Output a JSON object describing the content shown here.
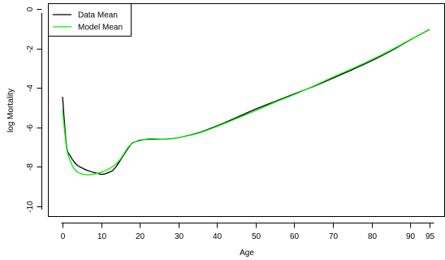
{
  "chart_data": {
    "type": "line",
    "title": "",
    "xlabel": "Age",
    "ylabel": "log Mortality",
    "xlim": [
      -3.8,
      98.8
    ],
    "ylim": [
      -10.5,
      0.3
    ],
    "x_ticks": [
      0,
      10,
      20,
      30,
      40,
      50,
      60,
      70,
      80,
      90,
      95
    ],
    "y_ticks": [
      0,
      -2,
      -4,
      -6,
      -8,
      -10
    ],
    "legend_position": "top-left",
    "grid": false,
    "series": [
      {
        "name": "Data Mean",
        "color": "#000000",
        "x": [
          0,
          1,
          2,
          3,
          4,
          5,
          6,
          7,
          8,
          9,
          10,
          11,
          12,
          13,
          14,
          15,
          16,
          17,
          18,
          19,
          20,
          22,
          24,
          26,
          28,
          30,
          35,
          40,
          45,
          50,
          55,
          60,
          65,
          70,
          75,
          80,
          85,
          90,
          95
        ],
        "y": [
          -4.45,
          -6.9,
          -7.45,
          -7.75,
          -7.95,
          -8.05,
          -8.15,
          -8.22,
          -8.28,
          -8.33,
          -8.38,
          -8.35,
          -8.28,
          -8.18,
          -7.95,
          -7.65,
          -7.35,
          -7.05,
          -6.8,
          -6.72,
          -6.65,
          -6.6,
          -6.6,
          -6.6,
          -6.57,
          -6.52,
          -6.28,
          -5.92,
          -5.5,
          -5.07,
          -4.68,
          -4.3,
          -3.92,
          -3.5,
          -3.07,
          -2.62,
          -2.12,
          -1.56,
          -1.03
        ]
      },
      {
        "name": "Model Mean",
        "color": "#00ee00",
        "x": [
          0,
          1,
          2,
          3,
          4,
          5,
          6,
          7,
          8,
          9,
          10,
          11,
          12,
          13,
          14,
          15,
          16,
          17,
          18,
          19,
          20,
          22,
          24,
          26,
          28,
          30,
          35,
          40,
          45,
          50,
          55,
          60,
          65,
          70,
          75,
          80,
          85,
          90,
          95
        ],
        "y": [
          -5.1,
          -7.0,
          -7.7,
          -8.1,
          -8.28,
          -8.36,
          -8.4,
          -8.4,
          -8.37,
          -8.33,
          -8.28,
          -8.2,
          -8.1,
          -7.98,
          -7.82,
          -7.6,
          -7.3,
          -7.0,
          -6.82,
          -6.72,
          -6.68,
          -6.58,
          -6.58,
          -6.6,
          -6.58,
          -6.52,
          -6.3,
          -5.95,
          -5.55,
          -5.15,
          -4.72,
          -4.33,
          -3.9,
          -3.45,
          -3.02,
          -2.57,
          -2.08,
          -1.55,
          -1.02
        ]
      }
    ]
  }
}
